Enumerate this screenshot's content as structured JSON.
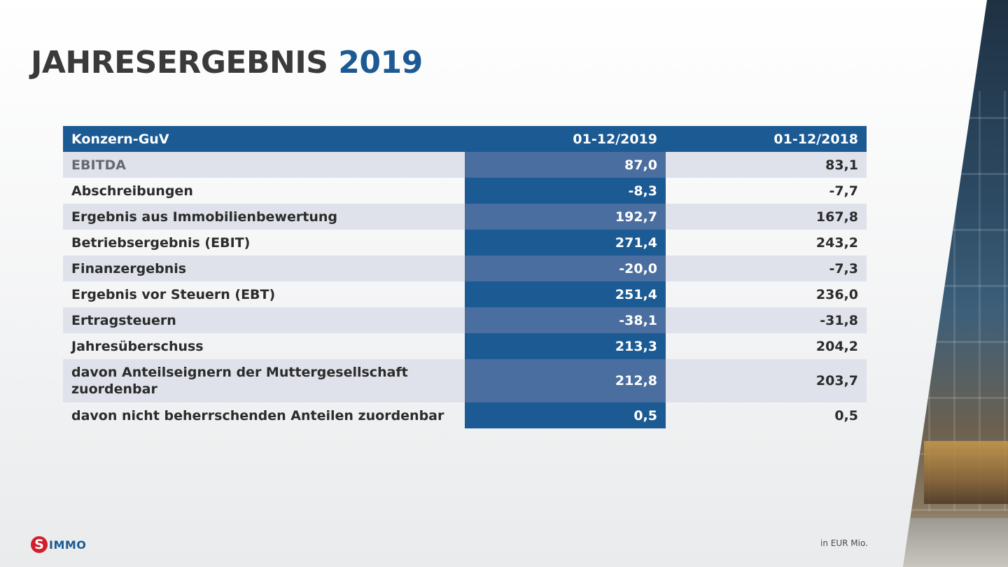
{
  "title": {
    "main": "JAHRESERGEBNIS",
    "year": "2019"
  },
  "table": {
    "headers": [
      "Konzern-GuV",
      "01-12/2019",
      "01-12/2018"
    ],
    "rows": [
      {
        "label": "EBITDA",
        "cur": "87,0",
        "prev": "83,1"
      },
      {
        "label": "Abschreibungen",
        "cur": "-8,3",
        "prev": "-7,7"
      },
      {
        "label": "Ergebnis aus Immobilienbewertung",
        "cur": "192,7",
        "prev": "167,8"
      },
      {
        "label": "Betriebsergebnis (EBIT)",
        "cur": "271,4",
        "prev": "243,2"
      },
      {
        "label": "Finanzergebnis",
        "cur": "-20,0",
        "prev": "-7,3"
      },
      {
        "label": "Ergebnis vor Steuern (EBT)",
        "cur": "251,4",
        "prev": "236,0"
      },
      {
        "label": "Ertragsteuern",
        "cur": "-38,1",
        "prev": "-31,8"
      },
      {
        "label": "Jahresüberschuss",
        "cur": "213,3",
        "prev": "204,2"
      },
      {
        "label": "davon Anteilseignern der Muttergesellschaft zuordenbar",
        "cur": "212,8",
        "prev": "203,7"
      },
      {
        "label": "davon nicht beherrschenden Anteilen zuordenbar",
        "cur": "0,5",
        "prev": "0,5"
      }
    ]
  },
  "footer": {
    "logo_mark": "S",
    "logo_word": "IMMO",
    "unit_note": "in EUR Mio."
  },
  "colors": {
    "accent": "#1b5a93",
    "accent_light": "#4a6e9f",
    "stripe": "#dfe2ea",
    "logo_red": "#d21f2b"
  }
}
